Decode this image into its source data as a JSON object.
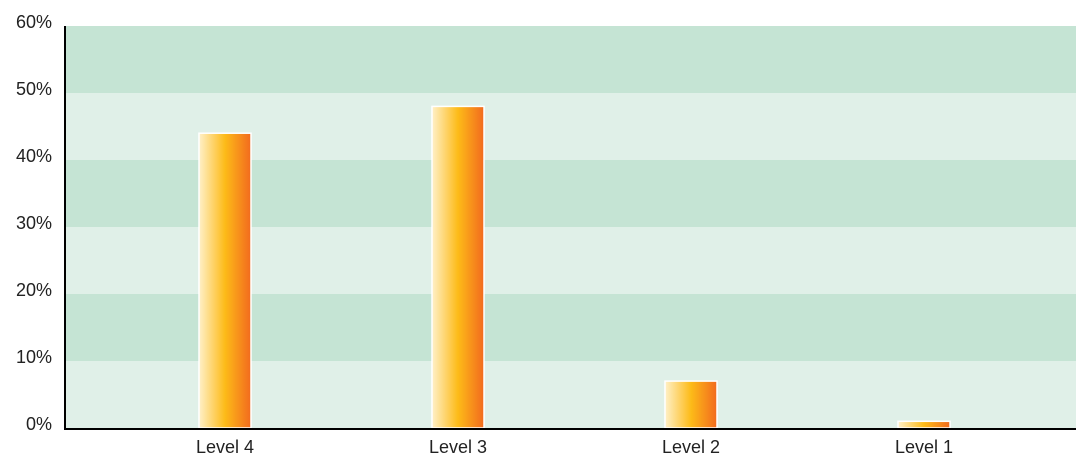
{
  "chart_data": {
    "type": "bar",
    "categories": [
      "Level 4",
      "Level 3",
      "Level 2",
      "Level 1"
    ],
    "values": [
      44,
      48,
      7,
      1
    ],
    "ylim": [
      0,
      60
    ],
    "yticks": [
      {
        "value": 0,
        "label": "0%"
      },
      {
        "value": 10,
        "label": "10%"
      },
      {
        "value": 20,
        "label": "20%"
      },
      {
        "value": 30,
        "label": "30%"
      },
      {
        "value": 40,
        "label": "40%"
      },
      {
        "value": 50,
        "label": "50%"
      },
      {
        "value": 60,
        "label": "60%"
      }
    ],
    "grid": true,
    "band_colors": [
      "#e0f0e8",
      "#c5e4d4"
    ]
  }
}
